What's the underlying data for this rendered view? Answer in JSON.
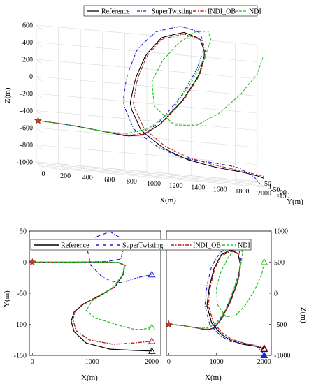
{
  "legend": {
    "entries": [
      {
        "name": "Reference",
        "color": "#000000",
        "dash": "solid"
      },
      {
        "name": "SuperTwisting",
        "color": "#1f1fd0",
        "dash": "dashdot"
      },
      {
        "name": "INDI_OB",
        "color": "#b22222",
        "dash": "dashdot2"
      },
      {
        "name": "NDI",
        "color": "#22c022",
        "dash": "dashed"
      }
    ]
  },
  "chart_data": [
    {
      "type": "line3d",
      "xlabel": "X(m)",
      "ylabel": "Y(m)",
      "zlabel": "Z(m)",
      "xticks": [
        "0",
        "200",
        "400",
        "600",
        "800",
        "1000",
        "1200",
        "1400",
        "1600",
        "1800",
        "2000"
      ],
      "yticks": [
        "50",
        "0",
        "-50",
        "-100",
        "-150"
      ],
      "zticks": [
        "600",
        "400",
        "200",
        "0",
        "-200",
        "-400",
        "-600",
        "-800",
        "-1000"
      ],
      "xlim": [
        0,
        2000
      ],
      "ylim": [
        -150,
        50
      ],
      "zlim": [
        -1000,
        600
      ],
      "grid": true
    },
    {
      "type": "line",
      "xlabel": "X(m)",
      "ylabel": "Y(m)",
      "xticks": [
        "0",
        "1000",
        "2000"
      ],
      "yticks": [
        "50",
        "0",
        "-50",
        "-100",
        "-150"
      ],
      "xlim": [
        -50,
        2150
      ],
      "ylim": [
        -150,
        50
      ],
      "series": [
        {
          "name": "Reference",
          "x": [
            0,
            600,
            1250,
            1450,
            1540,
            1520,
            1380,
            1100,
            850,
            700,
            650,
            700,
            900,
            1300,
            1700,
            2000
          ],
          "y": [
            0,
            0,
            0,
            -1,
            -5,
            -20,
            -40,
            -55,
            -68,
            -80,
            -95,
            -112,
            -130,
            -140,
            -142,
            -143
          ]
        },
        {
          "name": "SuperTwisting",
          "x": [
            0,
            600,
            1250,
            1480,
            1520,
            1460,
            1300,
            1050,
            920,
            980,
            1150,
            1300,
            1480,
            1600,
            1750,
            2000
          ],
          "y": [
            0,
            0,
            1,
            5,
            20,
            40,
            49,
            40,
            20,
            -5,
            -22,
            -30,
            -33,
            -30,
            -25,
            -20
          ]
        },
        {
          "name": "INDI_OB",
          "x": [
            0,
            600,
            1250,
            1450,
            1540,
            1520,
            1380,
            1100,
            850,
            720,
            680,
            730,
            950,
            1350,
            1700,
            2000
          ],
          "y": [
            0,
            0,
            0,
            -1,
            -5,
            -20,
            -40,
            -55,
            -67,
            -78,
            -92,
            -110,
            -125,
            -132,
            -130,
            -127
          ]
        },
        {
          "name": "NDI",
          "x": [
            0,
            600,
            1250,
            1450,
            1560,
            1500,
            1300,
            1000,
            900,
            1050,
            1300,
            1500,
            1700,
            1850,
            1950,
            2000
          ],
          "y": [
            0,
            0,
            0,
            0,
            -5,
            -22,
            -45,
            -62,
            -78,
            -90,
            -97,
            -103,
            -108,
            -108,
            -106,
            -105
          ]
        }
      ],
      "markers": {
        "start": {
          "x": 0,
          "y": 0,
          "shape": "star"
        },
        "end": [
          {
            "name": "Reference",
            "x": 2000,
            "y": -143
          },
          {
            "name": "SuperTwisting",
            "x": 2000,
            "y": -20
          },
          {
            "name": "INDI_OB",
            "x": 2000,
            "y": -127
          },
          {
            "name": "NDI",
            "x": 2000,
            "y": -105
          }
        ]
      }
    },
    {
      "type": "line",
      "xlabel": "X(m)",
      "ylabel": "Z(m)",
      "xticks": [
        "0",
        "1000",
        "2000"
      ],
      "yticks": [
        "1000",
        "500",
        "0",
        "-500",
        "-1000"
      ],
      "xlim": [
        -50,
        2150
      ],
      "ylim": [
        -1000,
        1000
      ],
      "series": [
        {
          "name": "Reference",
          "x": [
            0,
            300,
            600,
            800,
            950,
            1100,
            1300,
            1450,
            1500,
            1450,
            1300,
            1100,
            950,
            850,
            800,
            900,
            1100,
            1300,
            1550,
            1800,
            1950,
            2000
          ],
          "y": [
            -500,
            -520,
            -560,
            -590,
            -560,
            -420,
            -120,
            200,
            470,
            640,
            700,
            620,
            400,
            100,
            -200,
            -480,
            -660,
            -760,
            -820,
            -850,
            -880,
            -900
          ]
        },
        {
          "name": "SuperTwisting",
          "x": [
            0,
            300,
            600,
            800,
            950,
            1100,
            1300,
            1450,
            1520,
            1480,
            1300,
            1080,
            900,
            800,
            760,
            860,
            1080,
            1300,
            1550,
            1800,
            1950,
            2000
          ],
          "y": [
            -500,
            -520,
            -560,
            -590,
            -560,
            -400,
            -80,
            250,
            520,
            690,
            740,
            660,
            440,
            120,
            -200,
            -500,
            -680,
            -780,
            -800,
            -830,
            -930,
            -1000
          ]
        },
        {
          "name": "INDI_OB",
          "x": [
            0,
            300,
            600,
            800,
            960,
            1120,
            1320,
            1460,
            1510,
            1460,
            1300,
            1100,
            960,
            870,
            830,
            930,
            1120,
            1320,
            1560,
            1800,
            1950,
            2000
          ],
          "y": [
            -500,
            -520,
            -560,
            -580,
            -550,
            -400,
            -100,
            210,
            470,
            630,
            680,
            600,
            390,
            100,
            -190,
            -460,
            -640,
            -740,
            -800,
            -840,
            -870,
            -880
          ]
        },
        {
          "name": "NDI",
          "x": [
            0,
            300,
            600,
            800,
            1000,
            1200,
            1380,
            1500,
            1550,
            1520,
            1400,
            1250,
            1100,
            1000,
            1020,
            1200,
            1400,
            1600,
            1800,
            1950,
            2000
          ],
          "y": [
            -500,
            -520,
            -560,
            -560,
            -480,
            -260,
            100,
            420,
            640,
            740,
            720,
            580,
            360,
            100,
            -180,
            -380,
            -360,
            -200,
            50,
            300,
            500
          ]
        }
      ],
      "markers": {
        "start": {
          "x": 0,
          "y": -500,
          "shape": "star"
        },
        "end": [
          {
            "name": "Reference",
            "x": 2000,
            "y": -900
          },
          {
            "name": "SuperTwisting",
            "x": 2000,
            "y": -1000
          },
          {
            "name": "INDI_OB",
            "x": 2000,
            "y": -880
          },
          {
            "name": "NDI",
            "x": 2000,
            "y": 500
          }
        ]
      }
    }
  ]
}
